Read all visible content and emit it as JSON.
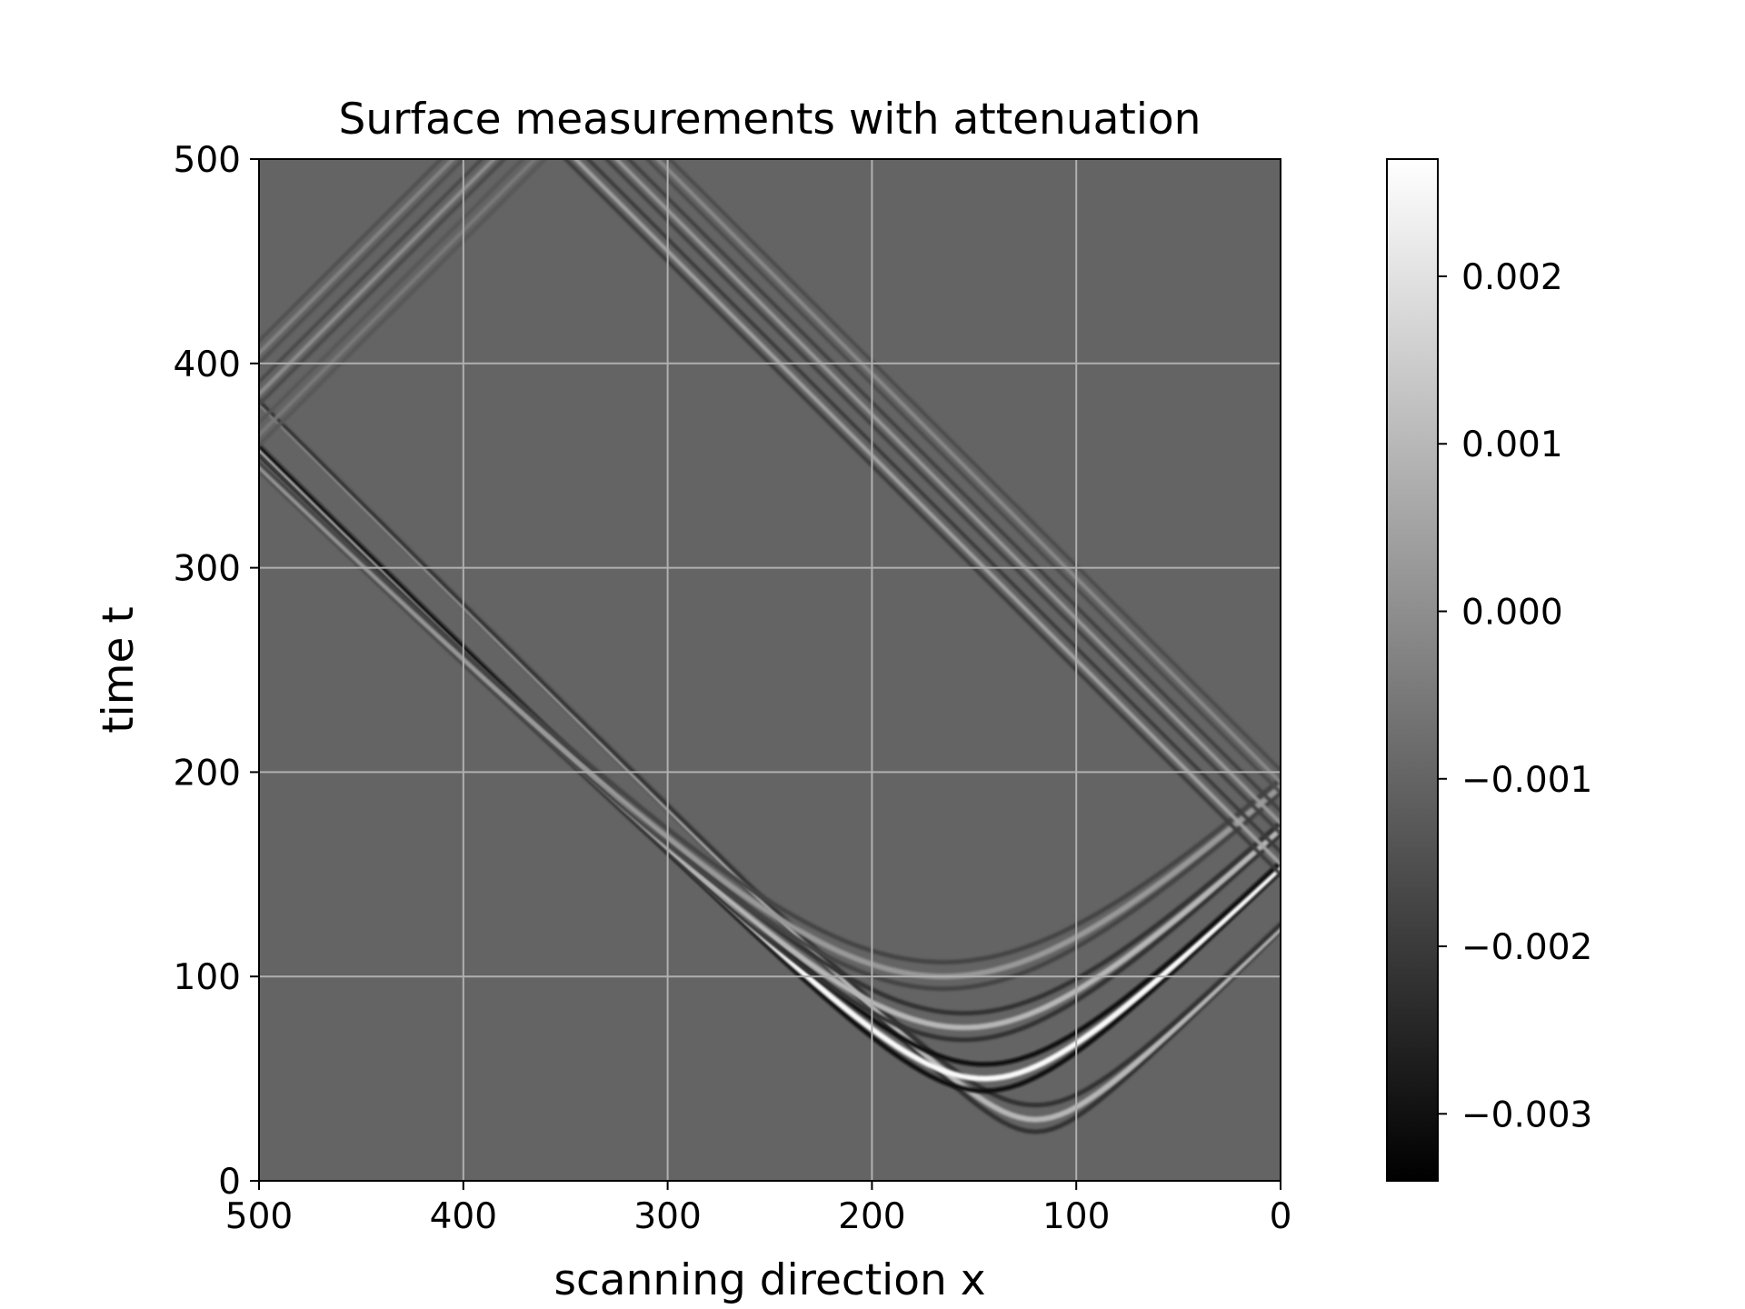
{
  "chart_data": {
    "type": "heatmap",
    "title": "Surface measurements with attenuation",
    "xlabel": "scanning direction x",
    "ylabel": "time t",
    "xlim": [
      500,
      0
    ],
    "ylim": [
      0,
      500
    ],
    "xticks": [
      500,
      400,
      300,
      200,
      100,
      0
    ],
    "xtick_labels": [
      "500",
      "400",
      "300",
      "200",
      "100",
      "0"
    ],
    "yticks": [
      0,
      100,
      200,
      300,
      400,
      500
    ],
    "ytick_labels": [
      "0",
      "100",
      "200",
      "300",
      "400",
      "500"
    ],
    "grid": true,
    "colormap": "gray",
    "colorbar": {
      "range": [
        -0.0034,
        0.0027
      ],
      "ticks": [
        0.002,
        0.001,
        0.0,
        -0.001,
        -0.002,
        -0.003
      ],
      "tick_labels": [
        "0.002",
        "0.001",
        "0.000",
        "−0.001",
        "−0.002",
        "−0.003"
      ]
    },
    "background_value": -0.0006,
    "features": [
      {
        "name": "direct hyperbola",
        "apex_x": 120,
        "apex_t": 30,
        "intensity": 0.0012
      },
      {
        "name": "main hyperbola",
        "apex_x": 145,
        "apex_t": 50,
        "intensity": 0.0027
      },
      {
        "name": "secondary hyperbola",
        "apex_x": 155,
        "apex_t": 75,
        "intensity": 0.0012
      },
      {
        "name": "late hyperbola",
        "apex_x": 165,
        "apex_t": 100,
        "intensity": 0.0007
      },
      {
        "name": "reflected branch from right edge",
        "x_range": [
          0,
          370
        ],
        "t_range": [
          150,
          500
        ],
        "intensity": 0.0012
      },
      {
        "name": "reflected branch from left edge",
        "x_range": [
          375,
          500
        ],
        "t_range": [
          360,
          500
        ],
        "intensity": 0.0007
      }
    ]
  }
}
